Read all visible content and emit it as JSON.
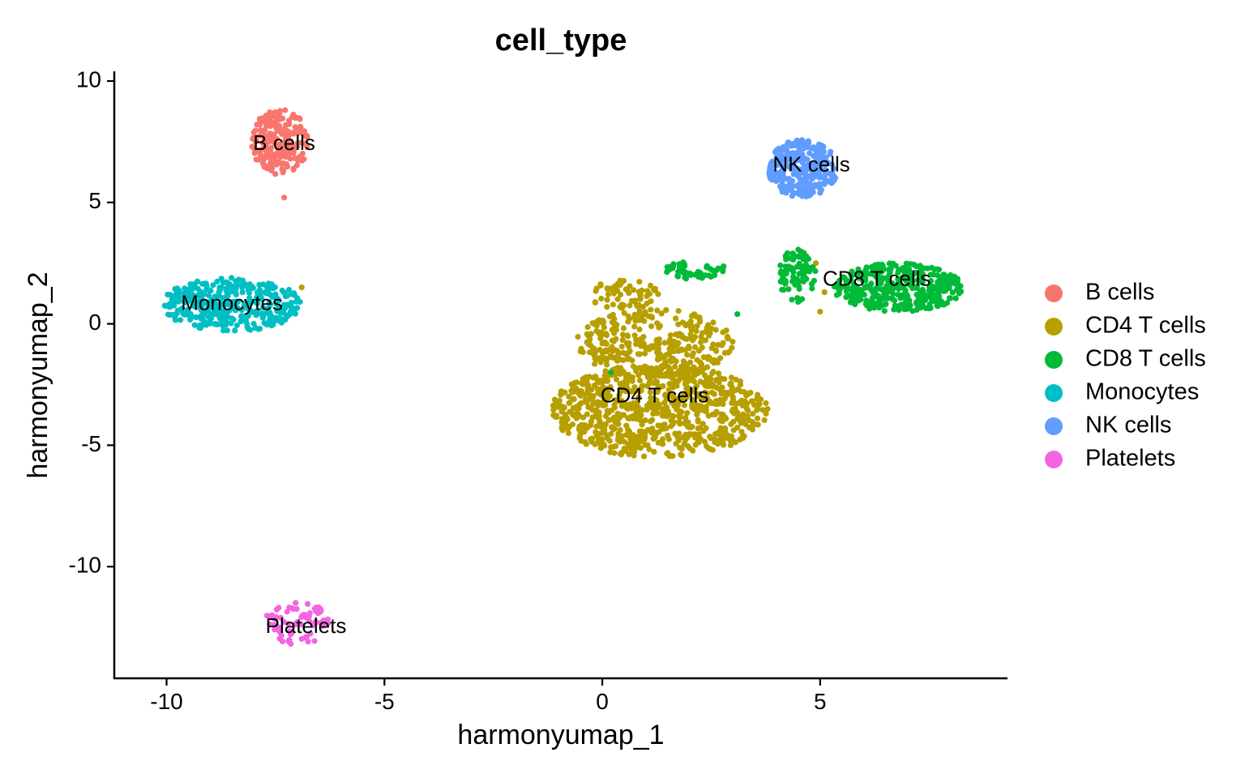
{
  "chart_data": {
    "type": "scatter",
    "title": "cell_type",
    "xlabel": "harmonyumap_1",
    "ylabel": "harmonyumap_2",
    "xlim": [
      -11.2,
      9.3
    ],
    "ylim": [
      -14.6,
      10.4
    ],
    "xticks": [
      {
        "value": -10,
        "label": "-10"
      },
      {
        "value": -5,
        "label": "-5"
      },
      {
        "value": 0,
        "label": "0"
      },
      {
        "value": 5,
        "label": "5"
      }
    ],
    "yticks": [
      {
        "value": 10,
        "label": "10"
      },
      {
        "value": 5,
        "label": "5"
      },
      {
        "value": 0,
        "label": "0"
      },
      {
        "value": -5,
        "label": "-5"
      },
      {
        "value": -10,
        "label": "-10"
      }
    ],
    "grid": false,
    "legend_position": "right",
    "series": [
      {
        "name": "B cells",
        "color": "#F8766D",
        "label": "B cells",
        "label_pos": [
          -7.3,
          7.4
        ],
        "clusters": [
          {
            "cx": -7.4,
            "cy": 7.5,
            "rx": 0.65,
            "ry": 1.35,
            "n": 210
          }
        ],
        "extra": [
          [
            -7.3,
            5.2
          ]
        ]
      },
      {
        "name": "CD4 T cells",
        "color": "#B79F00",
        "label": "CD4 T cells",
        "label_pos": [
          1.2,
          -3.0
        ],
        "clusters": [
          {
            "cx": 1.3,
            "cy": -3.6,
            "rx": 2.5,
            "ry": 1.9,
            "n": 800
          },
          {
            "cx": 1.2,
            "cy": -0.8,
            "rx": 1.8,
            "ry": 1.4,
            "n": 330
          },
          {
            "cx": 0.5,
            "cy": 1.2,
            "rx": 0.8,
            "ry": 0.6,
            "n": 60
          }
        ],
        "extra": [
          [
            -6.9,
            1.5
          ],
          [
            4.9,
            2.5
          ],
          [
            5.1,
            1.3
          ],
          [
            5.0,
            0.5
          ]
        ]
      },
      {
        "name": "CD8 T cells",
        "color": "#00BA38",
        "label": "CD8 T cells",
        "label_pos": [
          6.3,
          1.8
        ],
        "clusters": [
          {
            "cx": 6.8,
            "cy": 1.5,
            "rx": 1.5,
            "ry": 1.0,
            "n": 380
          },
          {
            "cx": 4.5,
            "cy": 2.0,
            "rx": 0.45,
            "ry": 1.1,
            "n": 80
          },
          {
            "cx": 2.1,
            "cy": 2.2,
            "rx": 0.8,
            "ry": 0.35,
            "n": 50
          }
        ],
        "extra": [
          [
            3.1,
            0.4
          ],
          [
            0.2,
            -2.0
          ]
        ]
      },
      {
        "name": "Monocytes",
        "color": "#00BFC4",
        "label": "Monocytes",
        "label_pos": [
          -8.5,
          0.8
        ],
        "clusters": [
          {
            "cx": -8.5,
            "cy": 0.8,
            "rx": 1.6,
            "ry": 1.1,
            "n": 360
          }
        ],
        "extra": []
      },
      {
        "name": "NK cells",
        "color": "#619CFF",
        "label": "NK cells",
        "label_pos": [
          4.8,
          6.5
        ],
        "clusters": [
          {
            "cx": 4.6,
            "cy": 6.4,
            "rx": 0.8,
            "ry": 1.2,
            "n": 300
          }
        ],
        "extra": []
      },
      {
        "name": "Platelets",
        "color": "#F564E3",
        "label": "Platelets",
        "label_pos": [
          -6.8,
          -12.5
        ],
        "clusters": [
          {
            "cx": -7.0,
            "cy": -12.3,
            "rx": 0.75,
            "ry": 0.9,
            "n": 70
          }
        ],
        "extra": []
      }
    ]
  }
}
